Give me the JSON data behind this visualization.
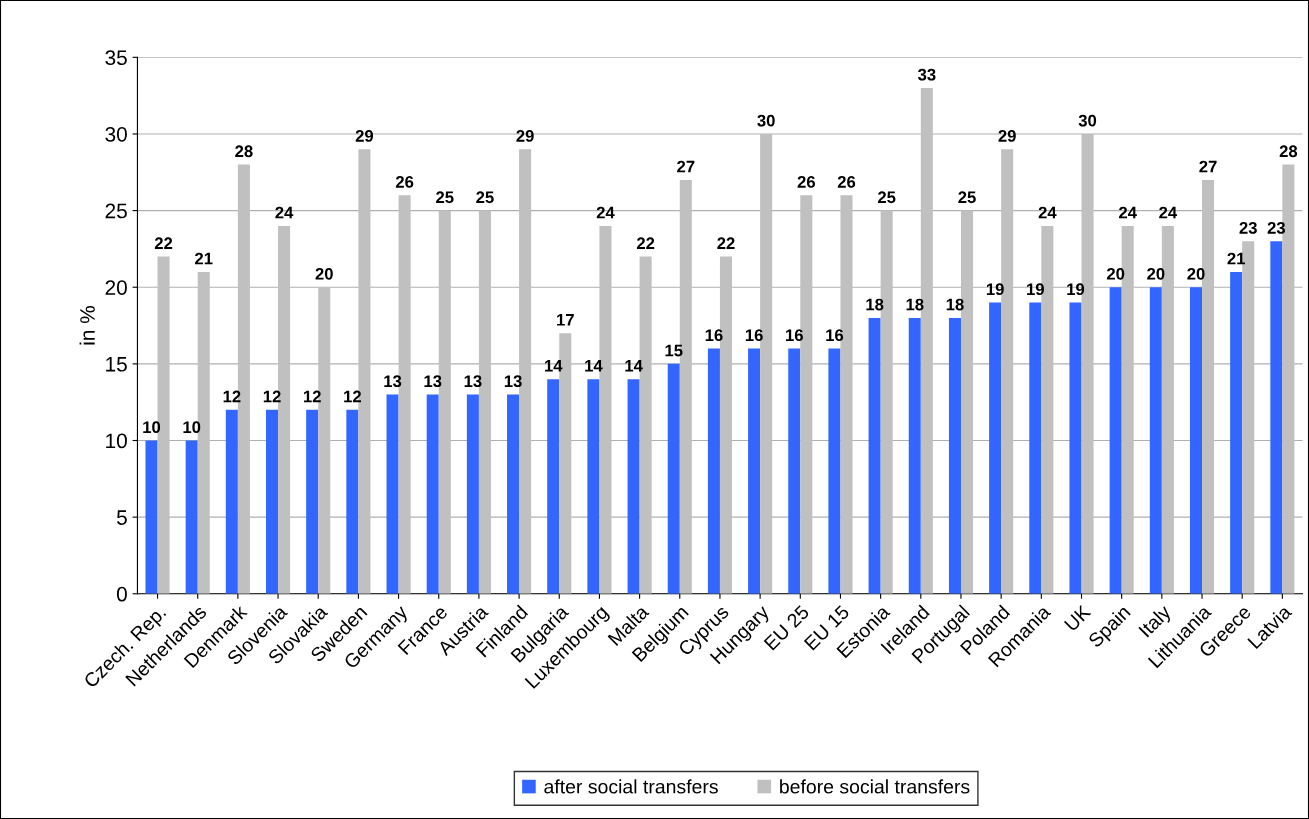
{
  "chart_data": {
    "type": "bar",
    "ylabel": "in %",
    "categories": [
      "Czech. Rep.",
      "Netherlands",
      "Denmark",
      "Slovenia",
      "Slovakia",
      "Sweden",
      "Germany",
      "France",
      "Austria",
      "Finland",
      "Bulgaria",
      "Luxembourg",
      "Malta",
      "Belgium",
      "Cyprus",
      "Hungary",
      "EU 25",
      "EU 15",
      "Estonia",
      "Ireland",
      "Portugal",
      "Poland",
      "Romania",
      "UK",
      "Spain",
      "Italy",
      "Lithuania",
      "Greece",
      "Latvia"
    ],
    "series": [
      {
        "name": "after social transfers",
        "color": "#3366ff",
        "values": [
          10,
          10,
          12,
          12,
          12,
          12,
          13,
          13,
          13,
          13,
          14,
          14,
          14,
          15,
          16,
          16,
          16,
          16,
          18,
          18,
          18,
          19,
          19,
          19,
          20,
          20,
          20,
          21,
          23
        ]
      },
      {
        "name": "before social transfers",
        "color": "#c0c0c0",
        "values": [
          22,
          21,
          28,
          24,
          20,
          29,
          26,
          25,
          25,
          29,
          17,
          24,
          22,
          27,
          22,
          30,
          26,
          26,
          25,
          33,
          25,
          29,
          24,
          30,
          24,
          24,
          27,
          23,
          28
        ]
      }
    ],
    "ylim": [
      0,
      35
    ],
    "yticks": [
      0,
      5,
      10,
      15,
      20,
      25,
      30,
      35
    ],
    "grid": "y",
    "legend": "bottom",
    "data_labels": true
  }
}
